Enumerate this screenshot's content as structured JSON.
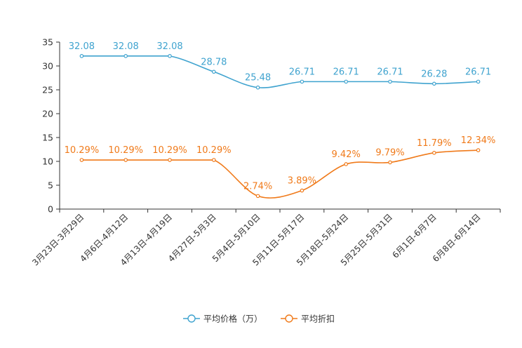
{
  "chart_data": {
    "type": "line",
    "categories": [
      "3月23日-3月29日",
      "4月6日-4月12日",
      "4月13日-4月19日",
      "4月27日-5月3日",
      "5月4日-5月10日",
      "5月11日-5月17日",
      "5月18日-5月24日",
      "5月25日-5月31日",
      "6月1日-6月7日",
      "6月8日-6月14日"
    ],
    "ylim": [
      0,
      35
    ],
    "yticks": [
      0,
      5,
      10,
      15,
      20,
      25,
      30,
      35
    ],
    "series": [
      {
        "name": "平均价格（万）",
        "color": "#3fa3cf",
        "values": [
          32.08,
          32.08,
          32.08,
          28.78,
          25.48,
          26.71,
          26.71,
          26.71,
          26.28,
          26.71
        ],
        "labels": [
          "32.08",
          "32.08",
          "32.08",
          "28.78",
          "25.48",
          "26.71",
          "26.71",
          "26.71",
          "26.28",
          "26.71"
        ]
      },
      {
        "name": "平均折扣",
        "color": "#f07a1a",
        "values": [
          10.29,
          10.29,
          10.29,
          10.29,
          2.74,
          3.89,
          9.42,
          9.79,
          11.79,
          12.34
        ],
        "labels": [
          "10.29%",
          "10.29%",
          "10.29%",
          "10.29%",
          "2.74%",
          "3.89%",
          "9.42%",
          "9.79%",
          "11.79%",
          "12.34%"
        ]
      }
    ],
    "legend_position": "bottom-center"
  }
}
